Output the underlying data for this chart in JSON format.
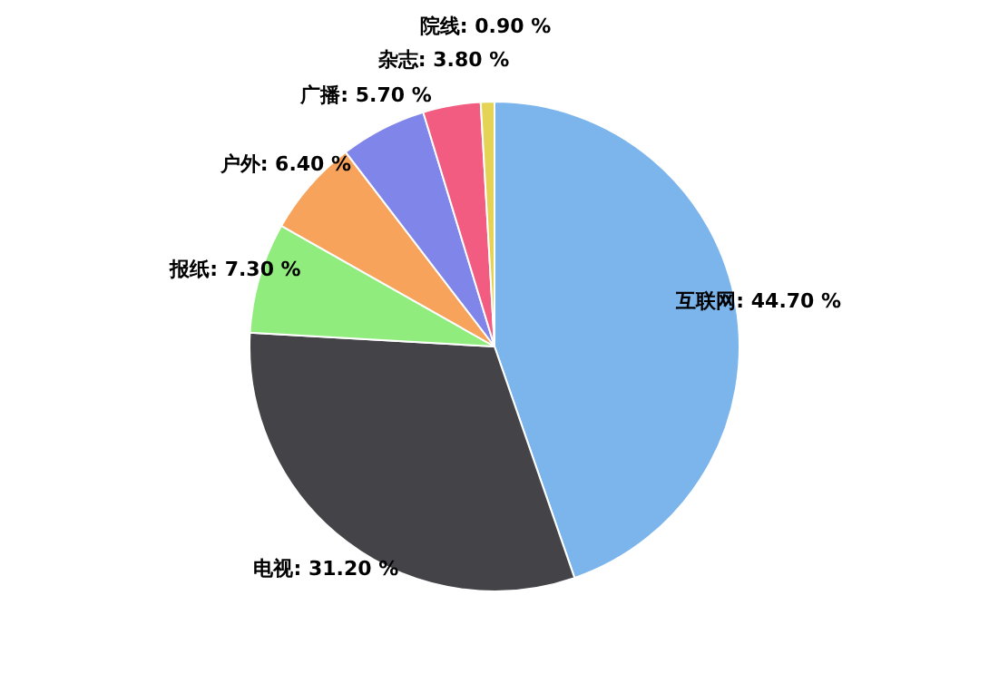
{
  "chart_data": {
    "type": "pie",
    "categories": [
      "互联网",
      "电视",
      "报纸",
      "户外",
      "广播",
      "杂志",
      "院线"
    ],
    "values": [
      44.7,
      31.2,
      7.3,
      6.4,
      5.7,
      3.8,
      0.9
    ],
    "value_labels": [
      "44.70 %",
      "31.20 %",
      "7.30 %",
      "6.40 %",
      "5.70 %",
      "3.80 %",
      "0.90 %"
    ],
    "colors": [
      "#7cb5ec",
      "#434348",
      "#90ed7d",
      "#f7a35c",
      "#8085e9",
      "#f15c80",
      "#e4d354"
    ]
  }
}
